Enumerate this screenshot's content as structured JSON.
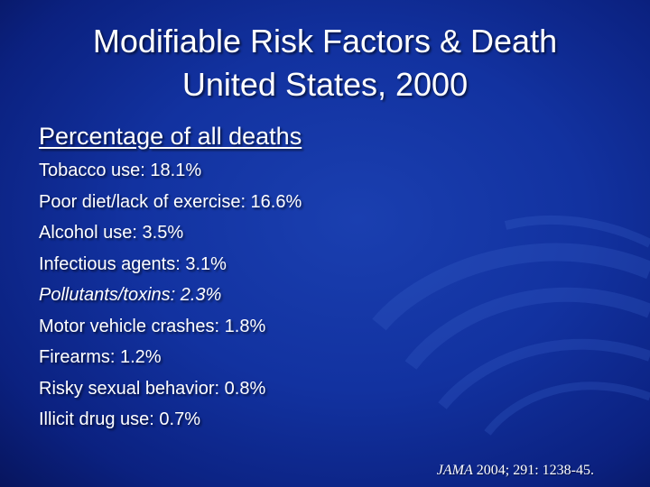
{
  "slide": {
    "title_line1": "Modifiable Risk Factors & Death",
    "title_line2": "United States, 2000",
    "subheading": "Percentage of all deaths",
    "items": [
      "Tobacco use: 18.1%",
      "Poor diet/lack of exercise: 16.6%",
      "Alcohol use: 3.5%",
      "Infectious agents: 3.1%",
      "Pollutants/toxins: 2.3%",
      "Motor vehicle crashes: 1.8%",
      "Firearms: 1.2%",
      "Risky sexual behavior: 0.8%",
      "Illicit drug use: 0.7%"
    ],
    "citation_journal": "JAMA",
    "citation_details": " 2004; 291: 1238-45."
  },
  "colors": {
    "background": "#1232a0",
    "text": "#ffffff"
  }
}
